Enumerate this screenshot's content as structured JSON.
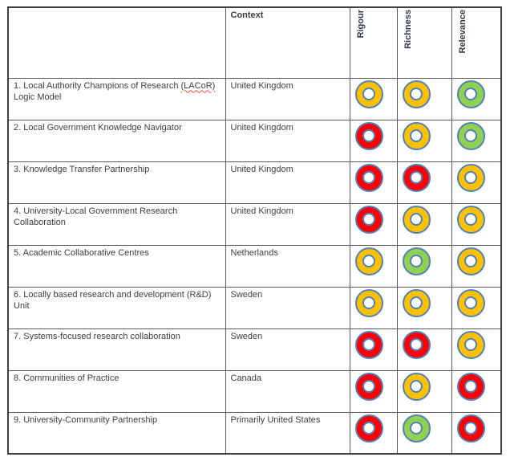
{
  "table": {
    "headers": {
      "name": "",
      "context": "Context",
      "rigour": "Rigour",
      "richness": "Richness",
      "relevance": "Relevance"
    },
    "rows": [
      {
        "title": "1. Local Authority Champions of Research (LACoR) Logic Model",
        "spellcheck": "(LACoR)",
        "context": "United Kingdom",
        "rigour": "amber",
        "richness": "amber",
        "relevance": "green"
      },
      {
        "title": "2. Local Government Knowledge Navigator",
        "context": "United Kingdom",
        "rigour": "red",
        "richness": "amber",
        "relevance": "green"
      },
      {
        "title": "3. Knowledge Transfer Partnership",
        "context": "United Kingdom",
        "rigour": "red",
        "richness": "red",
        "relevance": "amber"
      },
      {
        "title": "4. University-Local Government Research Collaboration",
        "context": "United Kingdom",
        "rigour": "red",
        "richness": "amber",
        "relevance": "amber"
      },
      {
        "title": "5. Academic Collaborative Centres",
        "context": "Netherlands",
        "rigour": "amber",
        "richness": "green",
        "relevance": "amber"
      },
      {
        "title": "6. Locally based research and development (R&D) Unit",
        "context": "Sweden",
        "rigour": "amber",
        "richness": "amber",
        "relevance": "amber"
      },
      {
        "title": "7. Systems-focused research collaboration",
        "context": "Sweden",
        "rigour": "red",
        "richness": "red",
        "relevance": "amber"
      },
      {
        "title": "8. Communities of Practice",
        "context": "Canada",
        "rigour": "red",
        "richness": "amber",
        "relevance": "red"
      },
      {
        "title": "9. University-Community Partnership",
        "context": "Primarily United States",
        "rigour": "red",
        "richness": "green",
        "relevance": "red"
      }
    ]
  },
  "rating_colors": {
    "red": "#fe0000",
    "amber": "#ffc000",
    "green": "#92d050"
  },
  "colors": {
    "ring_outline": "#4e81bd",
    "grid_line": "#595959",
    "outer_border": "#3f3f3f",
    "text": "#3d3d3d",
    "spellcheck_underline": "#e8503a"
  }
}
